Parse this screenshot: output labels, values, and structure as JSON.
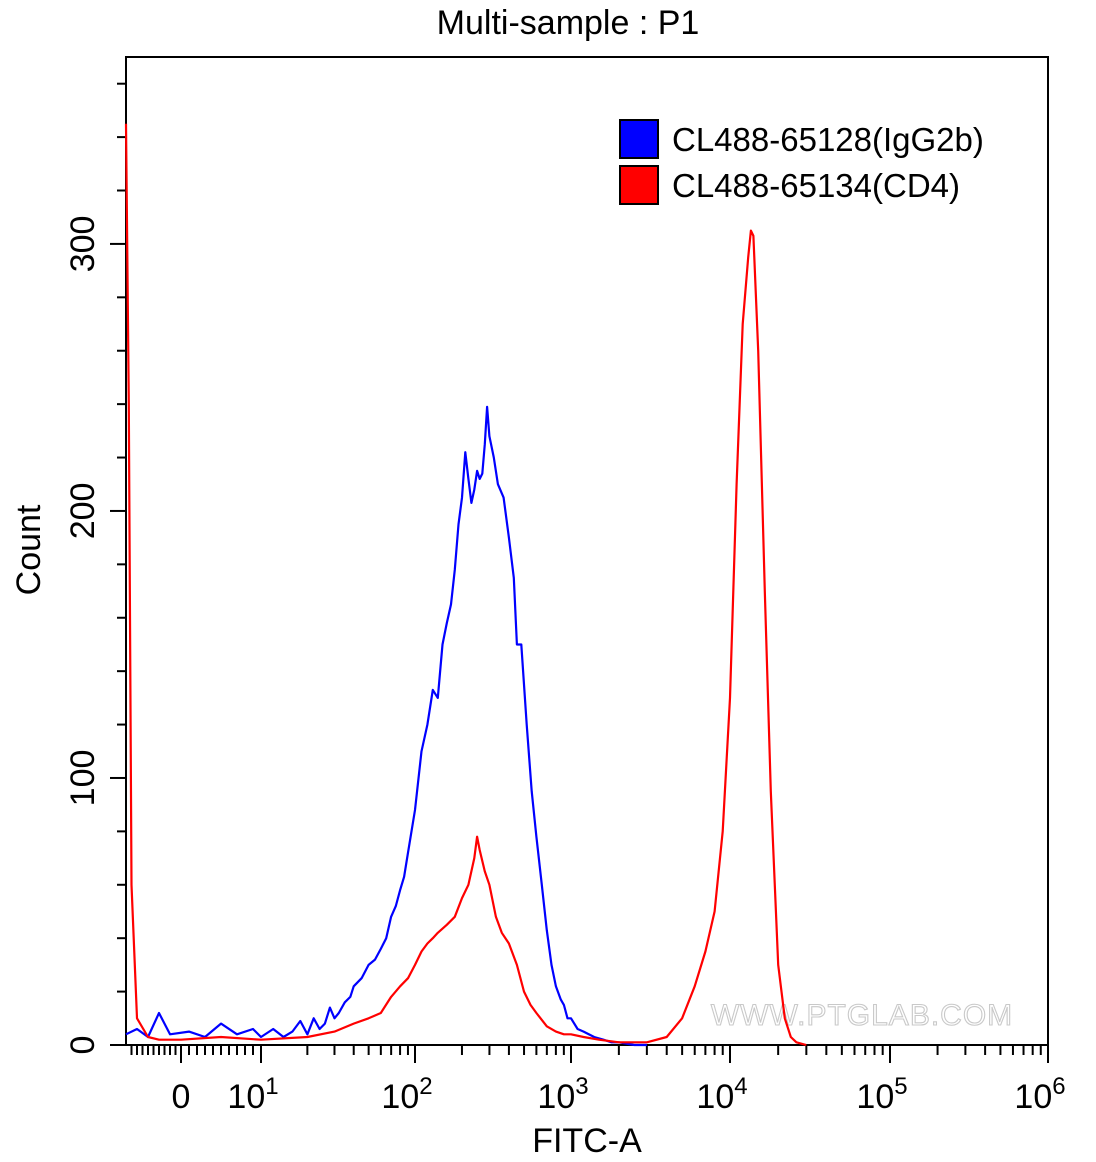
{
  "chart_data": {
    "type": "line",
    "title": "Multi-sample : P1",
    "xlabel": "FITC-A",
    "ylabel": "Count",
    "x_scale": "biexponential",
    "xlim": [
      -10,
      1000000
    ],
    "ylim": [
      0,
      370
    ],
    "y_ticks": [
      {
        "value": 0,
        "label": "0"
      },
      {
        "value": 100,
        "label": "100"
      },
      {
        "value": 200,
        "label": "200"
      },
      {
        "value": 300,
        "label": "300"
      }
    ],
    "x_ticks": [
      {
        "value": 0,
        "label": "0",
        "exp": ""
      },
      {
        "value": 10,
        "label": "10",
        "exp": "1"
      },
      {
        "value": 100,
        "label": "10",
        "exp": "2"
      },
      {
        "value": 1000,
        "label": "10",
        "exp": "3"
      },
      {
        "value": 10000,
        "label": "10",
        "exp": "4"
      },
      {
        "value": 100000,
        "label": "10",
        "exp": "5"
      },
      {
        "value": 1000000,
        "label": "10",
        "exp": "6"
      }
    ],
    "legend_position": "top-right",
    "series": [
      {
        "name": "CL488-65128(IgG2b)",
        "color": "#0000ff",
        "points": [
          [
            -10,
            4
          ],
          [
            -8,
            6
          ],
          [
            -6,
            3
          ],
          [
            -4,
            12
          ],
          [
            -2,
            4
          ],
          [
            1,
            5
          ],
          [
            3,
            3
          ],
          [
            5,
            8
          ],
          [
            7,
            4
          ],
          [
            9,
            6
          ],
          [
            10,
            3
          ],
          [
            12,
            6
          ],
          [
            14,
            3
          ],
          [
            16,
            5
          ],
          [
            18,
            9
          ],
          [
            20,
            4
          ],
          [
            22,
            10
          ],
          [
            24,
            6
          ],
          [
            26,
            8
          ],
          [
            28,
            14
          ],
          [
            30,
            10
          ],
          [
            32,
            12
          ],
          [
            35,
            16
          ],
          [
            38,
            18
          ],
          [
            40,
            22
          ],
          [
            45,
            25
          ],
          [
            50,
            30
          ],
          [
            55,
            32
          ],
          [
            60,
            36
          ],
          [
            65,
            40
          ],
          [
            70,
            48
          ],
          [
            75,
            52
          ],
          [
            80,
            58
          ],
          [
            85,
            63
          ],
          [
            90,
            72
          ],
          [
            100,
            88
          ],
          [
            110,
            110
          ],
          [
            120,
            120
          ],
          [
            130,
            133
          ],
          [
            140,
            130
          ],
          [
            150,
            150
          ],
          [
            160,
            158
          ],
          [
            170,
            165
          ],
          [
            180,
            178
          ],
          [
            190,
            195
          ],
          [
            200,
            205
          ],
          [
            210,
            222
          ],
          [
            220,
            212
          ],
          [
            230,
            203
          ],
          [
            240,
            208
          ],
          [
            250,
            215
          ],
          [
            260,
            212
          ],
          [
            270,
            214
          ],
          [
            280,
            225
          ],
          [
            290,
            239
          ],
          [
            300,
            228
          ],
          [
            320,
            220
          ],
          [
            340,
            210
          ],
          [
            370,
            205
          ],
          [
            400,
            190
          ],
          [
            430,
            175
          ],
          [
            450,
            150
          ],
          [
            480,
            150
          ],
          [
            520,
            120
          ],
          [
            560,
            95
          ],
          [
            600,
            78
          ],
          [
            650,
            60
          ],
          [
            700,
            43
          ],
          [
            750,
            30
          ],
          [
            800,
            22
          ],
          [
            860,
            17
          ],
          [
            900,
            15
          ],
          [
            950,
            10
          ],
          [
            1000,
            10
          ],
          [
            1100,
            6
          ],
          [
            1200,
            5
          ],
          [
            1400,
            3
          ],
          [
            1600,
            2
          ],
          [
            1800,
            1
          ],
          [
            2000,
            1
          ],
          [
            2500,
            0
          ],
          [
            3000,
            0
          ]
        ]
      },
      {
        "name": "CL488-65134(CD4)",
        "color": "#ff0000",
        "points": [
          [
            -10,
            345
          ],
          [
            -9.5,
            240
          ],
          [
            -9,
            60
          ],
          [
            -8,
            10
          ],
          [
            -6,
            3
          ],
          [
            -4,
            2
          ],
          [
            0,
            2
          ],
          [
            5,
            3
          ],
          [
            10,
            2
          ],
          [
            20,
            3
          ],
          [
            30,
            5
          ],
          [
            40,
            8
          ],
          [
            50,
            10
          ],
          [
            60,
            12
          ],
          [
            70,
            18
          ],
          [
            80,
            22
          ],
          [
            90,
            25
          ],
          [
            100,
            30
          ],
          [
            110,
            35
          ],
          [
            120,
            38
          ],
          [
            130,
            40
          ],
          [
            140,
            42
          ],
          [
            160,
            45
          ],
          [
            180,
            48
          ],
          [
            200,
            55
          ],
          [
            220,
            60
          ],
          [
            240,
            70
          ],
          [
            250,
            78
          ],
          [
            260,
            73
          ],
          [
            280,
            65
          ],
          [
            300,
            60
          ],
          [
            330,
            48
          ],
          [
            360,
            42
          ],
          [
            400,
            38
          ],
          [
            450,
            30
          ],
          [
            500,
            20
          ],
          [
            550,
            15
          ],
          [
            600,
            12
          ],
          [
            700,
            7
          ],
          [
            800,
            5
          ],
          [
            900,
            4
          ],
          [
            1000,
            4
          ],
          [
            1200,
            3
          ],
          [
            1500,
            2
          ],
          [
            2000,
            1
          ],
          [
            3000,
            1
          ],
          [
            4000,
            3
          ],
          [
            5000,
            10
          ],
          [
            6000,
            22
          ],
          [
            7000,
            35
          ],
          [
            8000,
            50
          ],
          [
            9000,
            80
          ],
          [
            10000,
            130
          ],
          [
            11000,
            210
          ],
          [
            12000,
            270
          ],
          [
            13000,
            295
          ],
          [
            13500,
            305
          ],
          [
            14000,
            303
          ],
          [
            15000,
            260
          ],
          [
            16500,
            170
          ],
          [
            18000,
            95
          ],
          [
            20000,
            30
          ],
          [
            22000,
            10
          ],
          [
            24000,
            3
          ],
          [
            26000,
            1
          ],
          [
            30000,
            0
          ]
        ]
      }
    ]
  },
  "watermark": "WWW.PTGLAB.COM"
}
